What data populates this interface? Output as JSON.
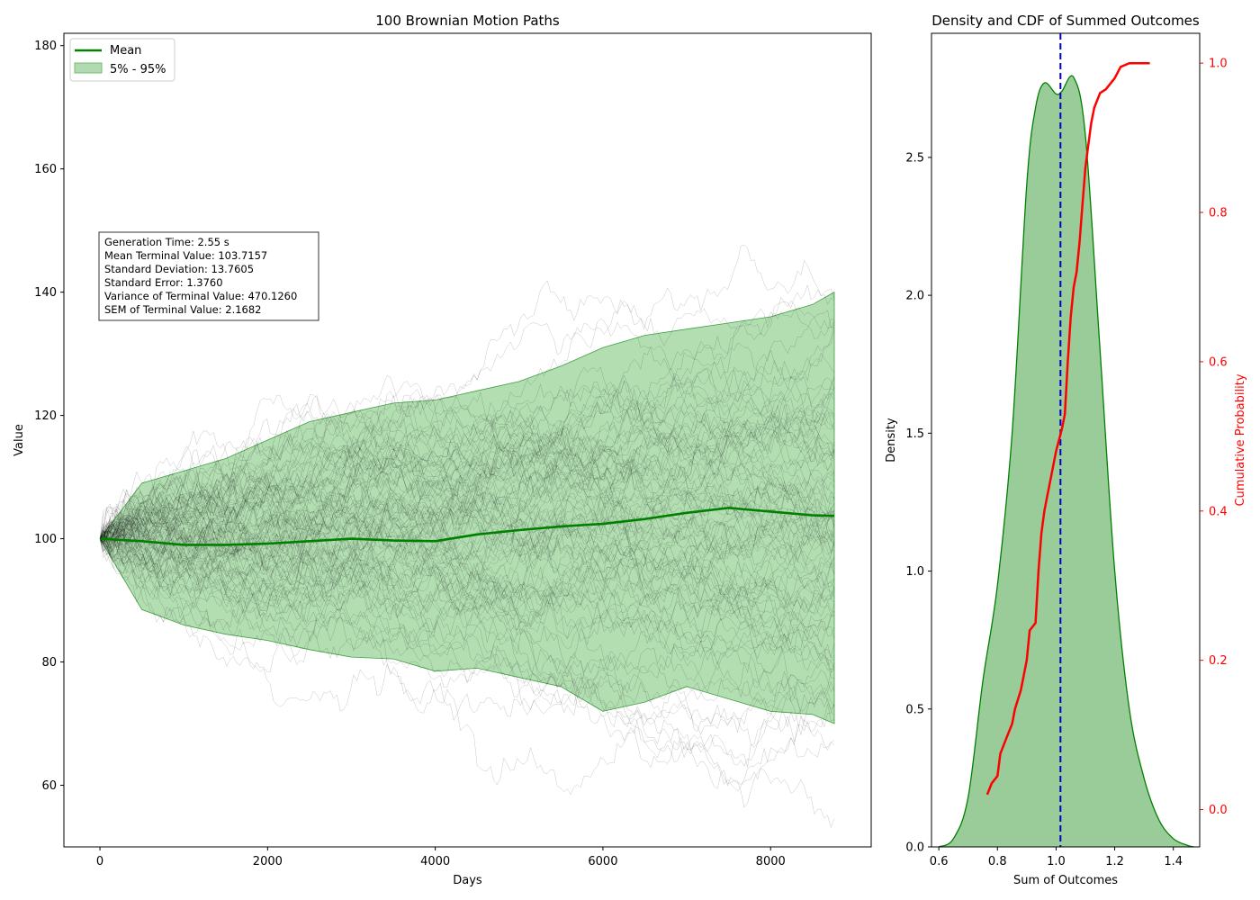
{
  "chart_data": [
    {
      "type": "line",
      "title": "100 Brownian Motion Paths",
      "xlabel": "Days",
      "ylabel": "Value",
      "xlim": [
        -430,
        9200
      ],
      "ylim": [
        50,
        182
      ],
      "x_ticks": [
        0,
        2000,
        4000,
        6000,
        8000
      ],
      "y_ticks": [
        60,
        80,
        100,
        120,
        140,
        160,
        180
      ],
      "n_paths": 100,
      "legend": {
        "position": "upper-left",
        "items": [
          "Mean",
          "5% - 95%"
        ]
      },
      "colors": {
        "paths": "#000000",
        "mean": "#008000",
        "band": "#6cc06c"
      },
      "series": [
        {
          "name": "Mean",
          "x": [
            0,
            500,
            1000,
            1500,
            2000,
            2500,
            3000,
            3500,
            4000,
            4500,
            5000,
            5500,
            6000,
            6500,
            7000,
            7500,
            8000,
            8500,
            8760
          ],
          "values": [
            100,
            99.6,
            99,
            99,
            99.2,
            99.6,
            100,
            99.7,
            99.6,
            100.7,
            101.4,
            102,
            102.4,
            103.2,
            104.2,
            105,
            104.4,
            103.8,
            103.7
          ]
        },
        {
          "name": "5%",
          "x": [
            0,
            500,
            1000,
            1500,
            2000,
            2500,
            3000,
            3500,
            4000,
            4500,
            5000,
            5500,
            6000,
            6500,
            7000,
            7500,
            8000,
            8500,
            8760
          ],
          "values": [
            100,
            88.5,
            86,
            84.5,
            83.5,
            82,
            80.8,
            80.5,
            78.5,
            79,
            77.5,
            76,
            72,
            73.5,
            76,
            74,
            72,
            71.5,
            70
          ]
        },
        {
          "name": "95%",
          "x": [
            0,
            500,
            1000,
            1500,
            2000,
            2500,
            3000,
            3500,
            4000,
            4500,
            5000,
            5500,
            6000,
            6500,
            7000,
            7500,
            8000,
            8500,
            8760
          ],
          "values": [
            100,
            109,
            111,
            113,
            116,
            119,
            120.5,
            122,
            122.5,
            124,
            125.5,
            128,
            131,
            133,
            134,
            135,
            136,
            138,
            140
          ]
        }
      ],
      "annotation": {
        "lines": [
          "Generation Time: 2.55 s",
          "Mean Terminal Value: 103.7157",
          "Standard Deviation: 13.7605",
          "Standard Error: 1.3760",
          "Variance of Terminal Value: 470.1260",
          "SEM of Terminal Value: 2.1682"
        ]
      }
    },
    {
      "type": "area",
      "title": "Density and CDF of Summed Outcomes",
      "xlabel": "Sum of Outcomes",
      "ylabel": "Density",
      "y2label": "Cumulative Probability",
      "xlim": [
        0.575,
        1.49
      ],
      "ylim": [
        0,
        2.95
      ],
      "y2lim": [
        -0.05,
        1.04
      ],
      "x_ticks": [
        0.6,
        0.8,
        1.0,
        1.2,
        1.4
      ],
      "y_ticks": [
        0.0,
        0.5,
        1.0,
        1.5,
        2.0,
        2.5
      ],
      "y2_ticks": [
        0.0,
        0.2,
        0.4,
        0.6,
        0.8,
        1.0
      ],
      "vline_x": 1.015,
      "colors": {
        "density_fill": "#99cc99",
        "density_line": "#008000",
        "cdf": "#ff0000",
        "vline": "#0000cc"
      },
      "series": [
        {
          "name": "Density",
          "x": [
            0.6,
            0.65,
            0.7,
            0.75,
            0.8,
            0.85,
            0.9,
            0.93,
            0.96,
            1.0,
            1.02,
            1.06,
            1.1,
            1.15,
            1.2,
            1.25,
            1.3,
            1.35,
            1.4,
            1.45,
            1.47
          ],
          "values": [
            0.0,
            0.03,
            0.18,
            0.6,
            0.95,
            1.5,
            2.4,
            2.68,
            2.77,
            2.73,
            2.74,
            2.79,
            2.58,
            1.8,
            1.0,
            0.5,
            0.25,
            0.1,
            0.03,
            0.005,
            0.0
          ]
        },
        {
          "name": "CDF",
          "x": [
            0.765,
            0.78,
            0.8,
            0.81,
            0.83,
            0.85,
            0.86,
            0.88,
            0.9,
            0.91,
            0.93,
            0.94,
            0.95,
            0.96,
            0.97,
            0.98,
            1.0,
            1.02,
            1.03,
            1.04,
            1.05,
            1.06,
            1.07,
            1.08,
            1.09,
            1.1,
            1.11,
            1.12,
            1.13,
            1.15,
            1.17,
            1.2,
            1.22,
            1.25,
            1.32
          ],
          "values": [
            0.02,
            0.035,
            0.045,
            0.075,
            0.095,
            0.115,
            0.135,
            0.16,
            0.2,
            0.24,
            0.25,
            0.32,
            0.37,
            0.4,
            0.42,
            0.44,
            0.48,
            0.51,
            0.53,
            0.6,
            0.66,
            0.7,
            0.72,
            0.76,
            0.81,
            0.86,
            0.89,
            0.92,
            0.94,
            0.96,
            0.965,
            0.98,
            0.995,
            1.0,
            1.0
          ]
        }
      ]
    }
  ]
}
